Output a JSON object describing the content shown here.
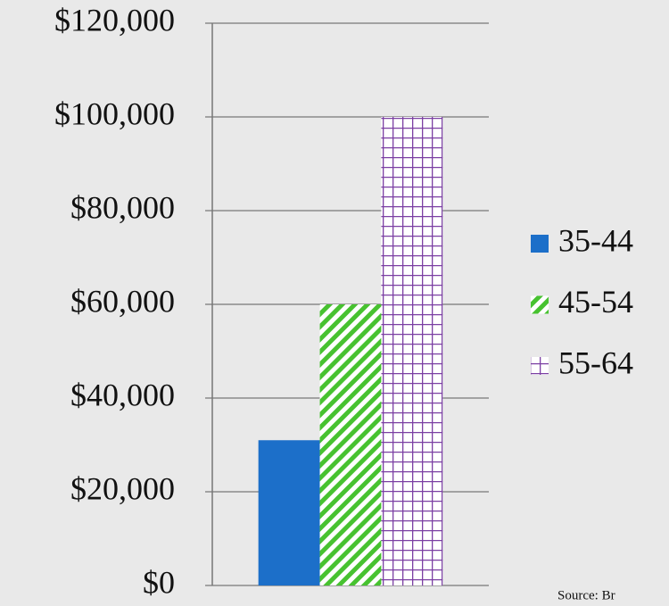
{
  "chart_data": {
    "type": "bar",
    "categories": [
      null
    ],
    "series": [
      {
        "name": "35-44",
        "color": "#1c6fc9",
        "pattern": "solid",
        "values": [
          31000
        ]
      },
      {
        "name": "45-54",
        "color": "#47c230",
        "pattern": "diagonal",
        "values": [
          60000
        ]
      },
      {
        "name": "55-64",
        "color": "#7b3fa3",
        "pattern": "grid",
        "values": [
          100000
        ]
      }
    ],
    "ylim": [
      0,
      120000
    ],
    "yticks": [
      {
        "value": 0,
        "label": "$0"
      },
      {
        "value": 20000,
        "label": "$20,000"
      },
      {
        "value": 40000,
        "label": "$40,000"
      },
      {
        "value": 60000,
        "label": "$60,000"
      },
      {
        "value": 80000,
        "label": "$80,000"
      },
      {
        "value": 100000,
        "label": "$100,000"
      },
      {
        "value": 120000,
        "label": "$120,000"
      }
    ],
    "grid": true,
    "legend": "right",
    "source": "Source:  Br"
  }
}
